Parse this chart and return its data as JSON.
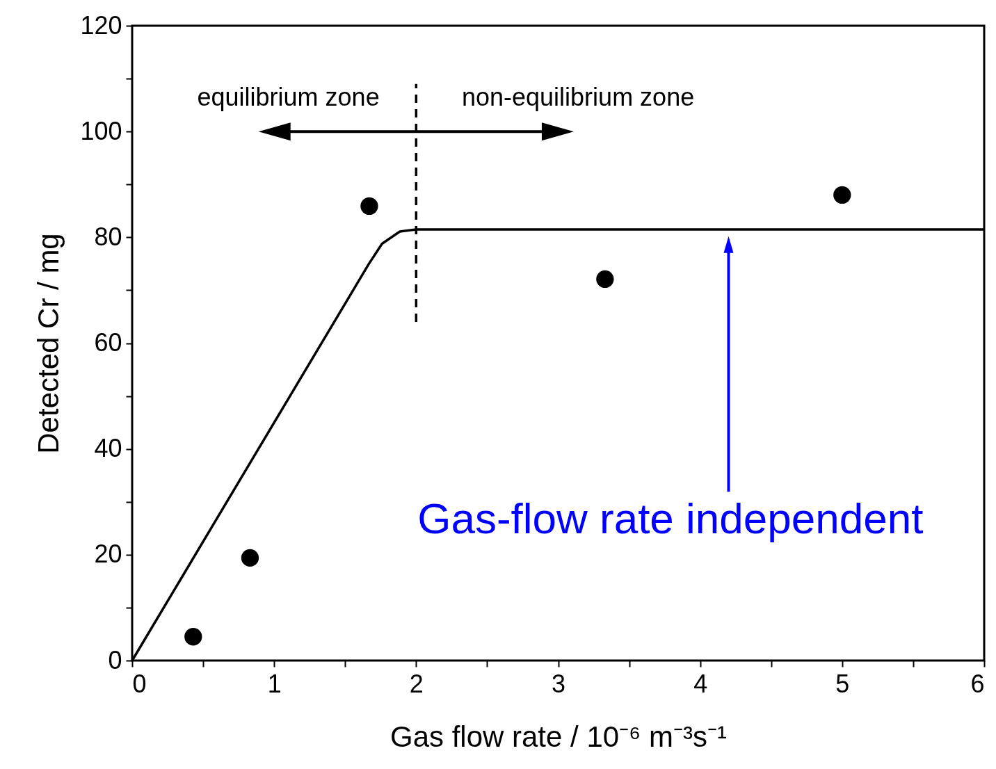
{
  "chart_data": {
    "type": "scatter",
    "xlabel": "Gas flow rate / 10⁻⁶ m⁻³s⁻¹",
    "ylabel": "Detected Cr / mg",
    "xlim": [
      0,
      6
    ],
    "ylim": [
      0,
      120
    ],
    "xticks": [
      0,
      {
        "value": 0.5,
        "label": null
      },
      1,
      {
        "value": 1.5,
        "label": null
      },
      2,
      {
        "value": 2.5,
        "label": null
      },
      3,
      {
        "value": 3.5,
        "label": null
      },
      4,
      {
        "value": 4.5,
        "label": null
      },
      5,
      {
        "value": 5.5,
        "label": null
      },
      6
    ],
    "yticks": [
      0,
      {
        "value": 10,
        "label": null
      },
      20,
      {
        "value": 30,
        "label": null
      },
      40,
      {
        "value": 50,
        "label": null
      },
      60,
      {
        "value": 70,
        "label": null
      },
      80,
      {
        "value": 90,
        "label": null
      },
      100,
      {
        "value": 110,
        "label": null
      },
      120
    ],
    "series": [
      {
        "type": "line",
        "x": [
          0,
          1.665,
          1.76,
          1.885,
          2.0,
          6
        ],
        "values": [
          0,
          74.9,
          78.8,
          81.1,
          81.5,
          81.5
        ],
        "color": "#000000"
      },
      {
        "x": [
          0.43,
          0.83,
          1.67,
          3.33,
          5.0
        ],
        "values": [
          4.5,
          19.4,
          85.9,
          72.1,
          88.0
        ],
        "color": "#000000",
        "marker": "circle"
      },
      {
        "type": "line",
        "x": [
          2,
          2
        ],
        "values": [
          64,
          109
        ],
        "color": "#000000",
        "line_style": "dashed"
      }
    ],
    "annotations": [
      "equilibrium zone",
      "non-equilibrium zone",
      "Gas-flow rate independent"
    ]
  }
}
